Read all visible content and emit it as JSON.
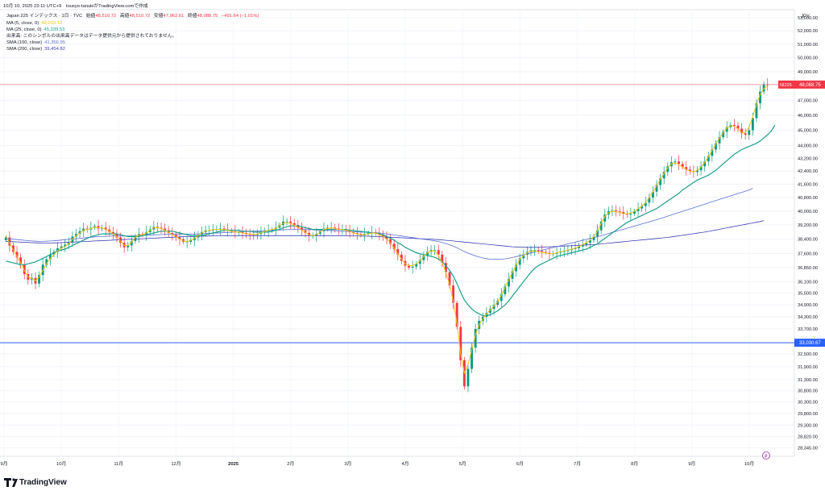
{
  "header": {
    "timestamp": "10月 10, 2025 23:11 UTC+9",
    "byline": "tousyo-tanukiがTradingView.comで作成",
    "symbol": "Japan 225 インデックス · 1日 · TVC",
    "open_label": "始値",
    "open": "48,510.72",
    "high_label": "高値",
    "high": "48,510.72",
    "low_label": "安値",
    "low": "47,962.61",
    "close_label": "終値",
    "close": "48,088.75",
    "change": "−491.64 (−1.01%)"
  },
  "legend": [
    {
      "label": "MA (5, close, 0)",
      "value": "48,003.13",
      "color": "#f5c518"
    },
    {
      "label": "MA (25, close, 0)",
      "value": "45,339.53",
      "color": "#1b9e8a"
    },
    {
      "label": "出来高: このシンボルの出来高データはデータ提供元から提供されておりません。",
      "value": "",
      "color": "#131722"
    },
    {
      "label": "SMA (100, close)",
      "value": "41,356.95",
      "color": "#5b6fd6"
    },
    {
      "label": "SMA (200, close)",
      "value": "39,454.82",
      "color": "#3f3fb5"
    }
  ],
  "price_axis": {
    "currency": "JPY",
    "ticks": [
      "53,000.00",
      "52,000.00",
      "51,000.00",
      "50,000.00",
      "49,000.00",
      "47,000.00",
      "46,000.00",
      "45,000.00",
      "44,000.00",
      "43,200.00",
      "42,400.00",
      "41,600.00",
      "40,800.00",
      "40,000.00",
      "39,200.00",
      "38,400.00",
      "37,600.00",
      "36,850.00",
      "36,100.00",
      "35,500.00",
      "34,900.00",
      "34,300.00",
      "33,700.00",
      "32,500.00",
      "31,900.00",
      "31,300.00",
      "30,800.00",
      "30,300.00",
      "29,800.00",
      "29,300.00",
      "28,820.00",
      "28,345.00"
    ],
    "last_price_tag": "NI225",
    "last_price": "48,088.75",
    "line_price": "33,030.67"
  },
  "time_axis": {
    "labels": [
      "9月",
      "10月",
      "11月",
      "12月",
      "2025",
      "2月",
      "3月",
      "4月",
      "5月",
      "6月",
      "7月",
      "8月",
      "9月",
      "10月"
    ]
  },
  "branding": {
    "name": "TradingView",
    "logo": "tradingview-logo"
  },
  "chart_data": {
    "type": "candlestick",
    "title": "Japan 225 インデックス · 1日 · TVC",
    "y_scale": "log",
    "ylim": [
      28000,
      53500
    ],
    "x_period": "2024-09 to 2025-10",
    "colors": {
      "up": "#089981",
      "down": "#f23645",
      "ma5": "#f5c518",
      "ma25": "#1b9e8a",
      "sma100": "#5b6fd6",
      "sma200": "#3f3fb5",
      "hline": "#2962ff"
    },
    "horizontal_line": 33030.67,
    "last_close": 48088.75,
    "close": [
      38500,
      38050,
      37700,
      37400,
      37000,
      36500,
      36200,
      36300,
      36000,
      36450,
      37000,
      37300,
      37550,
      37700,
      37900,
      38000,
      38100,
      38250,
      38550,
      38700,
      38850,
      39000,
      38950,
      39050,
      39150,
      39000,
      39050,
      38950,
      38800,
      38700,
      38500,
      38200,
      37950,
      38050,
      38300,
      38550,
      38700,
      38650,
      38800,
      38950,
      39100,
      39050,
      39000,
      38900,
      38750,
      38650,
      38500,
      38400,
      38250,
      38250,
      38350,
      38500,
      38650,
      38800,
      38900,
      38900,
      38950,
      38950,
      39000,
      38950,
      38900,
      38850,
      38800,
      38800,
      38750,
      38700,
      38650,
      38650,
      38700,
      38800,
      38850,
      38900,
      38950,
      39050,
      39200,
      39400,
      39400,
      39300,
      39200,
      39050,
      38900,
      38750,
      38600,
      38600,
      38700,
      38850,
      39000,
      39050,
      39050,
      39000,
      38950,
      38950,
      38900,
      38800,
      38750,
      38700,
      38650,
      38700,
      38750,
      38800,
      38750,
      38650,
      38550,
      38400,
      38150,
      37850,
      37550,
      37200,
      36950,
      36850,
      36900,
      37050,
      37250,
      37500,
      37700,
      37800,
      37800,
      37550,
      37100,
      36600,
      35900,
      35000,
      33800,
      32200,
      31000,
      31800,
      32800,
      33700,
      34100,
      34300,
      34500,
      34700,
      34900,
      35100,
      35450,
      35850,
      36250,
      36650,
      37000,
      37350,
      37550,
      37700,
      37800,
      37800,
      37750,
      37700,
      37650,
      37600,
      37600,
      37650,
      37700,
      37750,
      37800,
      37850,
      37900,
      38000,
      38100,
      38200,
      38350,
      38550,
      38900,
      39400,
      39800,
      40000,
      40050,
      40000,
      39950,
      39850,
      39800,
      39850,
      40000,
      40150,
      40300,
      40500,
      40800,
      41150,
      41550,
      41950,
      42350,
      42700,
      42950,
      43000,
      42850,
      42650,
      42500,
      42400,
      42350,
      42450,
      42700,
      43000,
      43350,
      43750,
      44150,
      44550,
      44900,
      45200,
      45350,
      45300,
      45100,
      44800,
      44700,
      45000,
      45800,
      46800,
      47600,
      48100,
      48088.75
    ],
    "ma5": [
      38600,
      38200,
      37800,
      37450,
      37100,
      36700,
      36350,
      36250,
      36150,
      36350,
      36700,
      37050,
      37350,
      37550,
      37750,
      37900,
      38000,
      38150,
      38400,
      38600,
      38750,
      38900,
      38950,
      39000,
      39100,
      39050,
      39050,
      38950,
      38850,
      38700,
      38550,
      38300,
      38050,
      38050,
      38250,
      38500,
      38650,
      38650,
      38750,
      38900,
      39050,
      39050,
      39000,
      38900,
      38800,
      38650,
      38550,
      38400,
      38300,
      38250,
      38350,
      38450,
      38600,
      38750,
      38850,
      38900,
      38950,
      38950,
      38950,
      38950,
      38900,
      38850,
      38800,
      38800,
      38750,
      38700,
      38700,
      38650,
      38700,
      38750,
      38850,
      38900,
      38950,
      39000,
      39150,
      39300,
      39350,
      39300,
      39200,
      39050,
      38900,
      38800,
      38650,
      38600,
      38650,
      38800,
      38950,
      39000,
      39050,
      39000,
      38950,
      38950,
      38900,
      38850,
      38750,
      38700,
      38650,
      38650,
      38700,
      38750,
      38750,
      38650,
      38550,
      38400,
      38200,
      37900,
      37600,
      37300,
      37050,
      36950,
      36950,
      37050,
      37200,
      37450,
      37650,
      37750,
      37750,
      37500,
      37100,
      36600,
      35950,
      35100,
      33950,
      32500,
      31600,
      32000,
      32700,
      33400,
      33900,
      34200,
      34450,
      34650,
      34850,
      35050,
      35400,
      35800,
      36200,
      36600,
      36950,
      37300,
      37500,
      37650,
      37750,
      37750,
      37700,
      37650,
      37650,
      37600,
      37600,
      37650,
      37700,
      37750,
      37800,
      37850,
      37900,
      38000,
      38100,
      38200,
      38350,
      38550,
      38850,
      39300,
      39700,
      39900,
      40000,
      39950,
      39950,
      39850,
      39850,
      39900,
      40000,
      40150,
      40300,
      40500,
      40800,
      41150,
      41500,
      41900,
      42250,
      42600,
      42850,
      42900,
      42800,
      42650,
      42500,
      42400,
      42350,
      42450,
      42650,
      42950,
      43300,
      43700,
      44100,
      44500,
      44850,
      45150,
      45300,
      45250,
      45100,
      44850,
      44850,
      45200,
      45900,
      46700,
      47400,
      47800,
      48003.13
    ],
    "ma25": [
      37200,
      37150,
      37100,
      37050,
      37000,
      37000,
      37050,
      37100,
      37150,
      37250,
      37350,
      37450,
      37550,
      37650,
      37750,
      37800,
      37850,
      37950,
      38050,
      38150,
      38250,
      38350,
      38450,
      38550,
      38600,
      38650,
      38700,
      38700,
      38700,
      38700,
      38700,
      38650,
      38600,
      38550,
      38550,
      38550,
      38550,
      38600,
      38650,
      38700,
      38750,
      38800,
      38850,
      38850,
      38850,
      38850,
      38800,
      38750,
      38700,
      38650,
      38600,
      38600,
      38600,
      38600,
      38650,
      38700,
      38750,
      38800,
      38850,
      38900,
      38900,
      38900,
      38900,
      38900,
      38850,
      38850,
      38850,
      38800,
      38800,
      38800,
      38800,
      38800,
      38850,
      38900,
      38950,
      39050,
      39100,
      39150,
      39150,
      39150,
      39100,
      39050,
      39000,
      38950,
      38950,
      38950,
      38950,
      38950,
      38950,
      38950,
      38950,
      38950,
      38950,
      38900,
      38900,
      38850,
      38850,
      38800,
      38800,
      38750,
      38750,
      38700,
      38650,
      38550,
      38450,
      38350,
      38200,
      38100,
      37950,
      37850,
      37750,
      37650,
      37600,
      37550,
      37500,
      37450,
      37400,
      37300,
      37150,
      36950,
      36700,
      36400,
      36000,
      35550,
      35150,
      34900,
      34700,
      34550,
      34450,
      34350,
      34350,
      34400,
      34500,
      34600,
      34750,
      34900,
      35100,
      35350,
      35600,
      35850,
      36100,
      36350,
      36600,
      36800,
      36950,
      37050,
      37150,
      37250,
      37350,
      37450,
      37500,
      37550,
      37600,
      37650,
      37700,
      37750,
      37800,
      37850,
      37950,
      38050,
      38150,
      38300,
      38450,
      38600,
      38750,
      38900,
      39050,
      39200,
      39350,
      39450,
      39550,
      39650,
      39750,
      39850,
      39950,
      40050,
      40150,
      40300,
      40450,
      40600,
      40750,
      40900,
      41050,
      41250,
      41400,
      41550,
      41700,
      41850,
      41950,
      42050,
      42150,
      42300,
      42450,
      42650,
      42850,
      43050,
      43250,
      43450,
      43600,
      43750,
      43850,
      43950,
      44050,
      44150,
      44300,
      44500,
      44700,
      44950,
      45339.53
    ],
    "sma100": [
      38450,
      38420,
      38400,
      38380,
      38360,
      38340,
      38320,
      38300,
      38290,
      38280,
      38280,
      38290,
      38300,
      38310,
      38330,
      38350,
      38370,
      38390,
      38410,
      38430,
      38450,
      38470,
      38490,
      38510,
      38530,
      38540,
      38550,
      38560,
      38570,
      38580,
      38580,
      38580,
      38580,
      38580,
      38580,
      38590,
      38600,
      38610,
      38620,
      38630,
      38640,
      38650,
      38660,
      38670,
      38680,
      38690,
      38690,
      38690,
      38690,
      38690,
      38690,
      38690,
      38700,
      38710,
      38720,
      38730,
      38740,
      38750,
      38760,
      38770,
      38780,
      38790,
      38800,
      38810,
      38820,
      38830,
      38840,
      38850,
      38860,
      38870,
      38880,
      38890,
      38900,
      38910,
      38920,
      38930,
      38940,
      38950,
      38950,
      38950,
      38950,
      38950,
      38940,
      38930,
      38920,
      38910,
      38900,
      38890,
      38880,
      38870,
      38860,
      38850,
      38840,
      38830,
      38820,
      38810,
      38800,
      38790,
      38780,
      38770,
      38760,
      38750,
      38730,
      38700,
      38670,
      38640,
      38610,
      38580,
      38550,
      38520,
      38490,
      38460,
      38430,
      38400,
      38370,
      38340,
      38310,
      38270,
      38220,
      38160,
      38090,
      38010,
      37920,
      37820,
      37720,
      37630,
      37550,
      37480,
      37420,
      37370,
      37330,
      37300,
      37290,
      37290,
      37300,
      37320,
      37350,
      37390,
      37440,
      37490,
      37540,
      37590,
      37640,
      37690,
      37740,
      37790,
      37840,
      37890,
      37940,
      37990,
      38040,
      38090,
      38140,
      38190,
      38240,
      38290,
      38340,
      38390,
      38440,
      38490,
      38540,
      38600,
      38660,
      38720,
      38780,
      38840,
      38900,
      38960,
      39020,
      39080,
      39140,
      39200,
      39260,
      39320,
      39380,
      39440,
      39500,
      39570,
      39640,
      39710,
      39780,
      39850,
      39920,
      39990,
      40060,
      40130,
      40200,
      40270,
      40340,
      40410,
      40480,
      40550,
      40620,
      40690,
      40760,
      40830,
      40900,
      40970,
      41040,
      41110,
      41180,
      41250,
      41356.95
    ],
    "sma200": [
      38280,
      38270,
      38260,
      38250,
      38240,
      38230,
      38220,
      38210,
      38200,
      38195,
      38190,
      38190,
      38190,
      38195,
      38200,
      38210,
      38220,
      38230,
      38240,
      38250,
      38260,
      38270,
      38280,
      38290,
      38300,
      38310,
      38320,
      38330,
      38340,
      38350,
      38360,
      38370,
      38380,
      38390,
      38400,
      38410,
      38420,
      38430,
      38440,
      38450,
      38460,
      38470,
      38480,
      38490,
      38500,
      38510,
      38520,
      38530,
      38540,
      38550,
      38555,
      38560,
      38565,
      38570,
      38575,
      38580,
      38585,
      38590,
      38595,
      38600,
      38600,
      38600,
      38600,
      38600,
      38600,
      38600,
      38600,
      38600,
      38600,
      38600,
      38600,
      38600,
      38600,
      38600,
      38600,
      38600,
      38600,
      38600,
      38600,
      38600,
      38600,
      38600,
      38600,
      38600,
      38600,
      38600,
      38600,
      38600,
      38600,
      38600,
      38600,
      38600,
      38600,
      38595,
      38590,
      38585,
      38580,
      38575,
      38570,
      38560,
      38550,
      38540,
      38530,
      38520,
      38510,
      38500,
      38490,
      38480,
      38470,
      38460,
      38450,
      38440,
      38430,
      38420,
      38410,
      38400,
      38390,
      38375,
      38360,
      38340,
      38320,
      38300,
      38280,
      38260,
      38240,
      38220,
      38200,
      38180,
      38160,
      38140,
      38120,
      38100,
      38080,
      38060,
      38040,
      38020,
      38000,
      37980,
      37970,
      37960,
      37955,
      37950,
      37950,
      37950,
      37955,
      37960,
      37970,
      37980,
      37990,
      38000,
      38010,
      38020,
      38030,
      38040,
      38050,
      38060,
      38070,
      38080,
      38090,
      38100,
      38120,
      38140,
      38160,
      38180,
      38200,
      38220,
      38240,
      38260,
      38280,
      38300,
      38320,
      38340,
      38360,
      38380,
      38400,
      38420,
      38440,
      38460,
      38480,
      38500,
      38530,
      38560,
      38590,
      38620,
      38650,
      38680,
      38710,
      38740,
      38770,
      38800,
      38840,
      38880,
      38920,
      38960,
      39000,
      39040,
      39080,
      39120,
      39160,
      39200,
      39240,
      39280,
      39320,
      39360,
      39400,
      39454.82
    ]
  }
}
